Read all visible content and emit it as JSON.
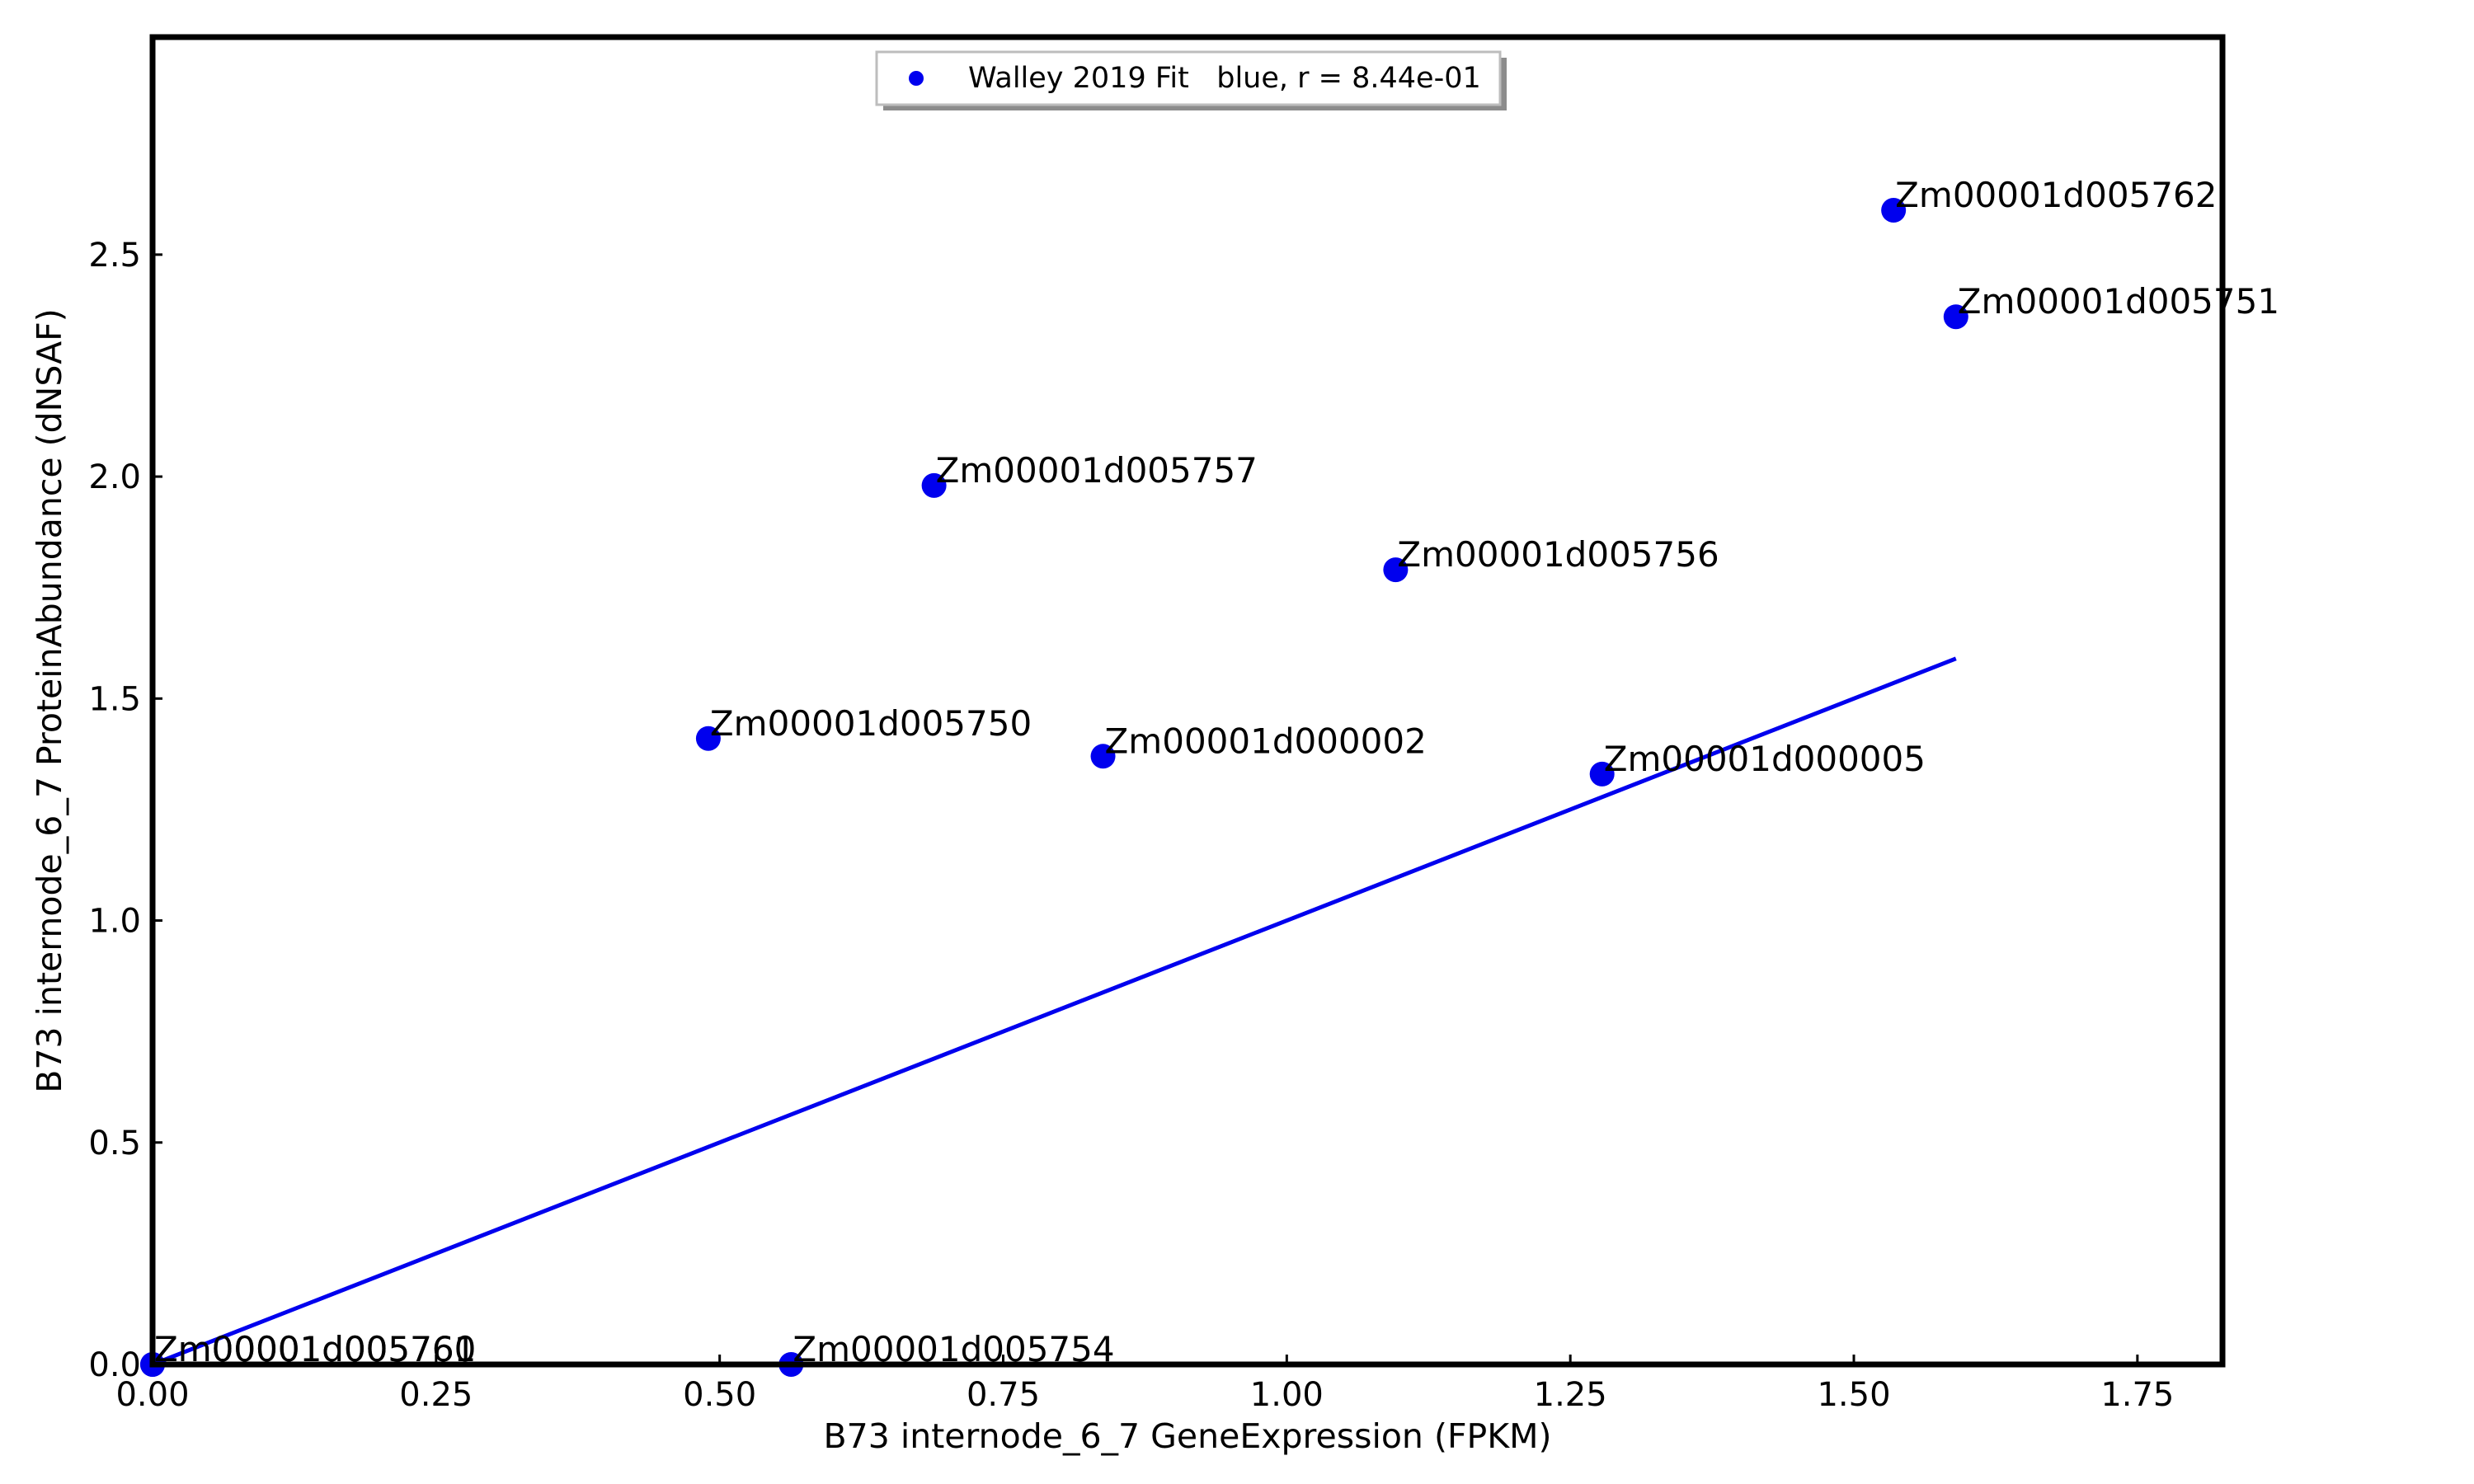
{
  "chart_data": {
    "type": "scatter",
    "title": "",
    "xlabel": "B73 internode_6_7 GeneExpression (FPKM)",
    "ylabel": "B73 internode_6_7 ProteinAbundance (dNSAF)",
    "xlim": [
      0.0,
      1.825
    ],
    "ylim": [
      0.0,
      2.99
    ],
    "x_ticks": [
      "0.00",
      "0.25",
      "0.50",
      "0.75",
      "1.00",
      "1.25",
      "1.50",
      "1.75"
    ],
    "y_ticks": [
      "0.0",
      "0.5",
      "1.0",
      "1.5",
      "2.0",
      "2.5"
    ],
    "grid": false,
    "legend_position": "top-center",
    "legend": "Walley 2019 Fit   blue, r = 8.44e-01",
    "colors": {
      "points": "#0000ee",
      "fit_line": "#0000ee",
      "axes": "#000000"
    },
    "points": [
      {
        "label": "Zm00001d005762",
        "x": 1.535,
        "y": 2.6
      },
      {
        "label": "Zm00001d005751",
        "x": 1.59,
        "y": 2.36
      },
      {
        "label": "Zm00001d005757",
        "x": 0.689,
        "y": 1.98
      },
      {
        "label": "Zm00001d005756",
        "x": 1.096,
        "y": 1.79
      },
      {
        "label": "Zm00001d005750",
        "x": 0.49,
        "y": 1.41
      },
      {
        "label": "Zm00001d000002",
        "x": 0.838,
        "y": 1.37
      },
      {
        "label": "Zm00001d000005",
        "x": 1.278,
        "y": 1.33
      },
      {
        "label": "Zm00001d005760",
        "x": 0.0,
        "y": 0.0
      },
      {
        "label": "Zm00001d005761",
        "x": 0.0,
        "y": 0.0
      },
      {
        "label": "Zm00001d005754",
        "x": 0.563,
        "y": 0.0
      }
    ],
    "fit_line": {
      "x": [
        0.0,
        1.59
      ],
      "y": [
        0.0,
        1.59
      ]
    }
  }
}
